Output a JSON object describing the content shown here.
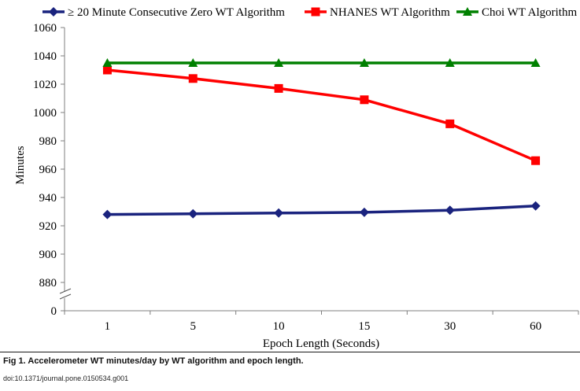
{
  "chart_data": {
    "type": "line",
    "categories": [
      "1",
      "5",
      "10",
      "15",
      "30",
      "60"
    ],
    "series": [
      {
        "name": "≥ 20 Minute Consecutive Zero WT Algorithm",
        "values": [
          928,
          928.5,
          929,
          929.5,
          931,
          934
        ],
        "color": "#1a237e",
        "marker": "diamond"
      },
      {
        "name": "NHANES WT Algorithm",
        "values": [
          1030,
          1024,
          1017,
          1009,
          992,
          966
        ],
        "color": "#ff0000",
        "marker": "square"
      },
      {
        "name": "Choi WT Algorithm",
        "values": [
          1035,
          1035,
          1035,
          1035,
          1035,
          1035
        ],
        "color": "#008000",
        "marker": "triangle"
      }
    ],
    "xlabel": "Epoch Length (Seconds)",
    "ylabel": "Minutes",
    "yticks": [
      "1060",
      "1040",
      "1020",
      "1000",
      "980",
      "960",
      "940",
      "920",
      "900",
      "880",
      "0"
    ],
    "ylim": [
      880,
      1060
    ],
    "axis_break": true,
    "grid": false,
    "legend_position": "top"
  },
  "figure": {
    "caption": "Fig 1. Accelerometer WT minutes/day by WT algorithm and epoch length.",
    "doi": "doi:10.1371/journal.pone.0150534.g001"
  }
}
